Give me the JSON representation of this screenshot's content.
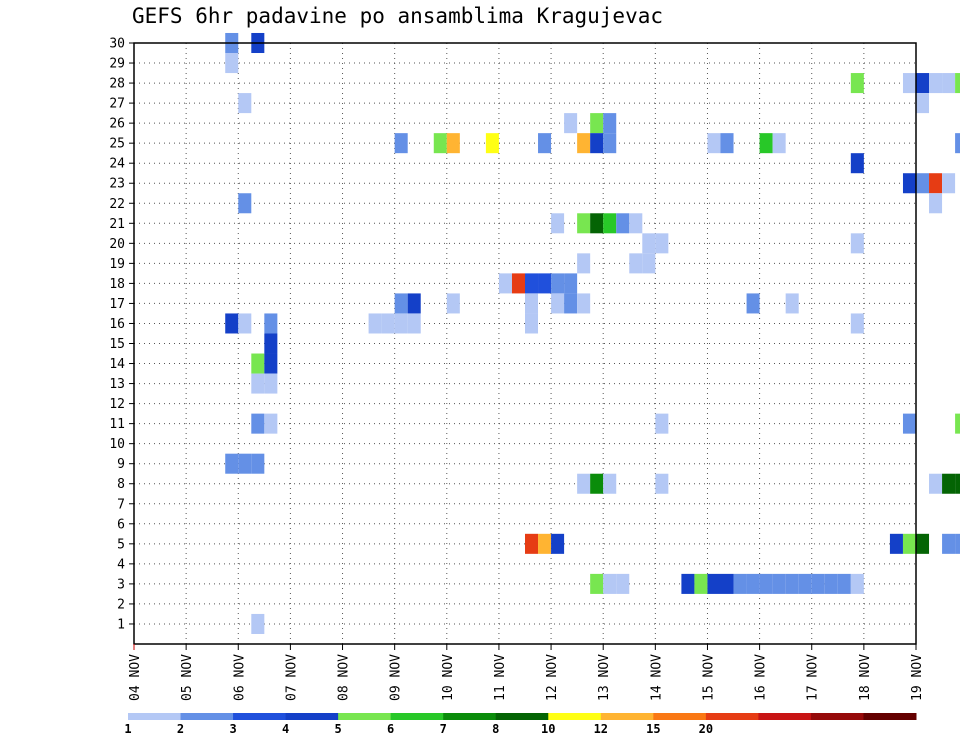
{
  "chart_data": {
    "type": "heatmap",
    "title": "GEFS 6hr padavine po ansamblima Kragujevac",
    "x_tick_labels": [
      "04 NOV",
      "05 NOV",
      "06 NOV",
      "07 NOV",
      "08 NOV",
      "09 NOV",
      "10 NOV",
      "11 NOV",
      "12 NOV",
      "13 NOV",
      "14 NOV",
      "15 NOV",
      "16 NOV",
      "17 NOV",
      "18 NOV",
      "19 NOV"
    ],
    "y_tick_labels": [
      "1",
      "2",
      "3",
      "4",
      "5",
      "6",
      "7",
      "8",
      "9",
      "10",
      "11",
      "12",
      "13",
      "14",
      "15",
      "16",
      "17",
      "18",
      "19",
      "20",
      "21",
      "22",
      "23",
      "24",
      "25",
      "26",
      "27",
      "28",
      "29",
      "30"
    ],
    "x_range_days": [
      0,
      15
    ],
    "y_range_members": [
      0,
      30
    ],
    "step_days": 0.25,
    "grid": "dotted",
    "colorbar": {
      "labels": [
        "1",
        "2",
        "3",
        "4",
        "5",
        "6",
        "7",
        "8",
        "10",
        "12",
        "15",
        "20"
      ],
      "colors": [
        "#b4c8f5",
        "#6490e6",
        "#2050dc",
        "#1440c8",
        "#78e650",
        "#28c828",
        "#0a8c0a",
        "#046404",
        "#ffff14",
        "#ffb432",
        "#fa7814",
        "#e63c14",
        "#c81414",
        "#960a0a",
        "#640000"
      ]
    },
    "cells": [
      {
        "member": 30,
        "time": 1.875,
        "level": 2
      },
      {
        "member": 30,
        "time": 2.375,
        "level": 4
      },
      {
        "member": 29,
        "time": 1.875,
        "level": 1
      },
      {
        "member": 28,
        "time": 13.875,
        "level": 5
      },
      {
        "member": 28,
        "time": 14.875,
        "level": 1
      },
      {
        "member": 28,
        "time": 15.125,
        "level": 4
      },
      {
        "member": 28,
        "time": 15.375,
        "level": 1
      },
      {
        "member": 28,
        "time": 15.625,
        "level": 1
      },
      {
        "member": 28,
        "time": 15.875,
        "level": 5
      },
      {
        "member": 27,
        "time": 2.125,
        "level": 1
      },
      {
        "member": 27,
        "time": 15.125,
        "level": 1
      },
      {
        "member": 26,
        "time": 8.375,
        "level": 1
      },
      {
        "member": 26,
        "time": 8.875,
        "level": 5
      },
      {
        "member": 26,
        "time": 9.125,
        "level": 2
      },
      {
        "member": 25,
        "time": 5.125,
        "level": 2
      },
      {
        "member": 25,
        "time": 5.875,
        "level": 5
      },
      {
        "member": 25,
        "time": 6.125,
        "level": 10
      },
      {
        "member": 25,
        "time": 6.875,
        "level": 9
      },
      {
        "member": 25,
        "time": 7.875,
        "level": 2
      },
      {
        "member": 25,
        "time": 8.625,
        "level": 10
      },
      {
        "member": 25,
        "time": 8.875,
        "level": 4
      },
      {
        "member": 25,
        "time": 9.125,
        "level": 2
      },
      {
        "member": 25,
        "time": 11.125,
        "level": 1
      },
      {
        "member": 25,
        "time": 11.375,
        "level": 2
      },
      {
        "member": 25,
        "time": 12.125,
        "level": 6
      },
      {
        "member": 25,
        "time": 12.375,
        "level": 1
      },
      {
        "member": 25,
        "time": 15.875,
        "level": 2
      },
      {
        "member": 24,
        "time": 13.875,
        "level": 4
      },
      {
        "member": 23,
        "time": 14.875,
        "level": 4
      },
      {
        "member": 23,
        "time": 15.125,
        "level": 2
      },
      {
        "member": 23,
        "time": 15.375,
        "level": 12
      },
      {
        "member": 23,
        "time": 15.625,
        "level": 1
      },
      {
        "member": 22,
        "time": 2.125,
        "level": 2
      },
      {
        "member": 22,
        "time": 15.375,
        "level": 1
      },
      {
        "member": 21,
        "time": 8.125,
        "level": 1
      },
      {
        "member": 21,
        "time": 8.625,
        "level": 5
      },
      {
        "member": 21,
        "time": 8.875,
        "level": 8
      },
      {
        "member": 21,
        "time": 9.125,
        "level": 6
      },
      {
        "member": 21,
        "time": 9.375,
        "level": 2
      },
      {
        "member": 21,
        "time": 9.625,
        "level": 1
      },
      {
        "member": 20,
        "time": 9.875,
        "level": 1
      },
      {
        "member": 20,
        "time": 10.125,
        "level": 1
      },
      {
        "member": 20,
        "time": 13.875,
        "level": 1
      },
      {
        "member": 19,
        "time": 8.625,
        "level": 1
      },
      {
        "member": 19,
        "time": 9.625,
        "level": 1
      },
      {
        "member": 19,
        "time": 9.875,
        "level": 1
      },
      {
        "member": 18,
        "time": 7.125,
        "level": 1
      },
      {
        "member": 18,
        "time": 7.375,
        "level": 12
      },
      {
        "member": 18,
        "time": 7.625,
        "level": 3
      },
      {
        "member": 18,
        "time": 7.875,
        "level": 3
      },
      {
        "member": 18,
        "time": 8.125,
        "level": 2
      },
      {
        "member": 18,
        "time": 8.375,
        "level": 2
      },
      {
        "member": 17,
        "time": 5.125,
        "level": 2
      },
      {
        "member": 17,
        "time": 5.375,
        "level": 4
      },
      {
        "member": 17,
        "time": 6.125,
        "level": 1
      },
      {
        "member": 17,
        "time": 7.625,
        "level": 1
      },
      {
        "member": 17,
        "time": 8.125,
        "level": 1
      },
      {
        "member": 17,
        "time": 8.375,
        "level": 2
      },
      {
        "member": 17,
        "time": 8.625,
        "level": 1
      },
      {
        "member": 17,
        "time": 11.875,
        "level": 2
      },
      {
        "member": 17,
        "time": 12.625,
        "level": 1
      },
      {
        "member": 16,
        "time": 1.875,
        "level": 4
      },
      {
        "member": 16,
        "time": 2.125,
        "level": 1
      },
      {
        "member": 16,
        "time": 2.625,
        "level": 2
      },
      {
        "member": 16,
        "time": 4.625,
        "level": 1
      },
      {
        "member": 16,
        "time": 4.875,
        "level": 1
      },
      {
        "member": 16,
        "time": 5.125,
        "level": 1
      },
      {
        "member": 16,
        "time": 5.375,
        "level": 1
      },
      {
        "member": 16,
        "time": 7.625,
        "level": 1
      },
      {
        "member": 16,
        "time": 13.875,
        "level": 1
      },
      {
        "member": 15,
        "time": 2.625,
        "level": 4
      },
      {
        "member": 14,
        "time": 2.375,
        "level": 5
      },
      {
        "member": 14,
        "time": 2.625,
        "level": 4
      },
      {
        "member": 13,
        "time": 2.375,
        "level": 1
      },
      {
        "member": 13,
        "time": 2.625,
        "level": 1
      },
      {
        "member": 11,
        "time": 2.375,
        "level": 2
      },
      {
        "member": 11,
        "time": 2.625,
        "level": 1
      },
      {
        "member": 11,
        "time": 10.125,
        "level": 1
      },
      {
        "member": 11,
        "time": 14.875,
        "level": 2
      },
      {
        "member": 11,
        "time": 15.875,
        "level": 5
      },
      {
        "member": 9,
        "time": 1.875,
        "level": 2
      },
      {
        "member": 9,
        "time": 2.125,
        "level": 2
      },
      {
        "member": 9,
        "time": 2.375,
        "level": 2
      },
      {
        "member": 8,
        "time": 8.625,
        "level": 1
      },
      {
        "member": 8,
        "time": 8.875,
        "level": 7
      },
      {
        "member": 8,
        "time": 9.125,
        "level": 1
      },
      {
        "member": 8,
        "time": 10.125,
        "level": 1
      },
      {
        "member": 8,
        "time": 15.375,
        "level": 1
      },
      {
        "member": 8,
        "time": 15.625,
        "level": 8
      },
      {
        "member": 8,
        "time": 15.875,
        "level": 8
      },
      {
        "member": 5,
        "time": 7.625,
        "level": 12
      },
      {
        "member": 5,
        "time": 7.875,
        "level": 10
      },
      {
        "member": 5,
        "time": 8.125,
        "level": 4
      },
      {
        "member": 5,
        "time": 14.625,
        "level": 4
      },
      {
        "member": 5,
        "time": 14.875,
        "level": 5
      },
      {
        "member": 5,
        "time": 15.125,
        "level": 8
      },
      {
        "member": 5,
        "time": 15.625,
        "level": 2
      },
      {
        "member": 5,
        "time": 15.875,
        "level": 2
      },
      {
        "member": 3,
        "time": 8.875,
        "level": 5
      },
      {
        "member": 3,
        "time": 9.125,
        "level": 1
      },
      {
        "member": 3,
        "time": 9.375,
        "level": 1
      },
      {
        "member": 3,
        "time": 10.625,
        "level": 4
      },
      {
        "member": 3,
        "time": 10.875,
        "level": 5
      },
      {
        "member": 3,
        "time": 11.125,
        "level": 4
      },
      {
        "member": 3,
        "time": 11.375,
        "level": 4
      },
      {
        "member": 3,
        "time": 11.625,
        "level": 2
      },
      {
        "member": 3,
        "time": 11.875,
        "level": 2
      },
      {
        "member": 3,
        "time": 12.125,
        "level": 2
      },
      {
        "member": 3,
        "time": 12.375,
        "level": 2
      },
      {
        "member": 3,
        "time": 12.625,
        "level": 2
      },
      {
        "member": 3,
        "time": 12.875,
        "level": 2
      },
      {
        "member": 3,
        "time": 13.125,
        "level": 2
      },
      {
        "member": 3,
        "time": 13.375,
        "level": 2
      },
      {
        "member": 3,
        "time": 13.625,
        "level": 2
      },
      {
        "member": 3,
        "time": 13.875,
        "level": 1
      },
      {
        "member": 1,
        "time": 2.375,
        "level": 1
      }
    ]
  }
}
